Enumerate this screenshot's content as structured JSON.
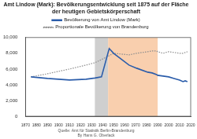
{
  "chart_data": {
    "type": "line",
    "title": "Amt Lindow (Mark): Bevölkerungsentwicklung seit 1875 auf der Fläche der heutigen Gebietskörperschaft",
    "notes": [
      "Quelle: Amt für Statistik Berlin-Brandenburg",
      "By Hans G. Oberlack"
    ],
    "x": [
      1875,
      1890,
      1910,
      1925,
      1933,
      1939,
      1946,
      1950,
      1964,
      1971,
      1981,
      1985,
      1989,
      1990,
      1995,
      2000,
      2005,
      2010,
      2013,
      2015,
      2017
    ],
    "series": [
      {
        "name": "Bevölkerung von Amt Lindow (Mark)",
        "color": "#2a5caa",
        "line_style": "solid",
        "values": [
          5000,
          4800,
          4600,
          4700,
          4850,
          5000,
          8600,
          8000,
          6500,
          6100,
          5600,
          5500,
          5300,
          5200,
          5100,
          5000,
          4800,
          4600,
          4400,
          4500,
          4400
        ]
      },
      {
        "name": "Proportionale Bevölkerung von Brandenburg",
        "color": "#8c8c8c",
        "line_style": "dotted",
        "values": [
          5000,
          5400,
          6000,
          6500,
          6800,
          7200,
          7700,
          8000,
          7800,
          8000,
          8200,
          8300,
          8300,
          8200,
          8000,
          8200,
          8100,
          8000,
          8000,
          8100,
          8200
        ]
      }
    ],
    "shaded_periods": [
      {
        "from": 1933,
        "to": 1945,
        "color": "#cfcfcf"
      },
      {
        "from": 1945,
        "to": 1990,
        "color": "#f9cfae"
      }
    ],
    "xlim": [
      1870,
      2020
    ],
    "xticks": [
      1870,
      1880,
      1890,
      1900,
      1910,
      1920,
      1930,
      1940,
      1950,
      1960,
      1970,
      1980,
      1990,
      2000,
      2010,
      2020
    ],
    "ylim": [
      0,
      10000
    ],
    "yticks": [
      0,
      {
        "value": 2000,
        "label": "2,000"
      },
      {
        "value": 4000,
        "label": "4,000"
      },
      {
        "value": 6000,
        "label": "6,000"
      },
      {
        "value": 8000,
        "label": "8,000"
      },
      {
        "value": 10000,
        "label": "10,000"
      }
    ],
    "legend": "top",
    "grid": false
  }
}
